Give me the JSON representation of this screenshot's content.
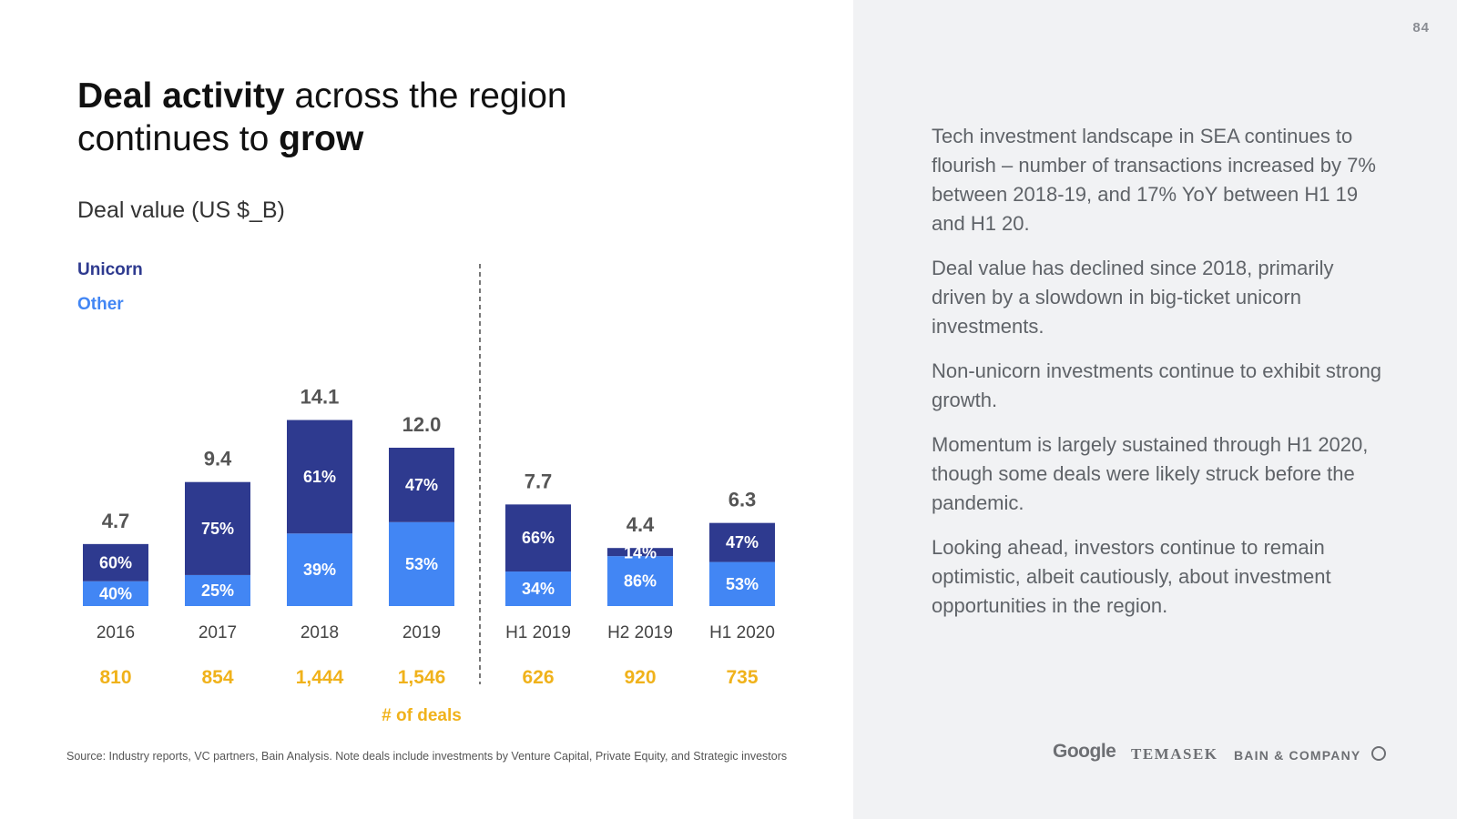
{
  "page_number": "84",
  "title": {
    "part1_bold": "Deal activity",
    "part1_rest": " across the region",
    "part2_rest": "continues to ",
    "part2_bold": "grow"
  },
  "subtitle": "Deal value (US $_B)",
  "colors": {
    "unicorn": "#2e3a8f",
    "other": "#4286f4",
    "deals": "#f0b21b",
    "total": "#555555"
  },
  "chart_data": {
    "type": "bar",
    "stacked": true,
    "title": "Deal value (US $_B)",
    "categories": [
      "2016",
      "2017",
      "2018",
      "2019",
      "H1 2019",
      "H2 2019",
      "H1 2020"
    ],
    "totals": [
      4.7,
      9.4,
      14.1,
      12.0,
      7.7,
      4.4,
      6.3
    ],
    "total_labels": [
      "4.7",
      "9.4",
      "14.1",
      "12.0",
      "7.7",
      "4.4",
      "6.3"
    ],
    "series": [
      {
        "name": "Other",
        "percent": [
          40,
          25,
          39,
          53,
          34,
          86,
          53
        ],
        "labels": [
          "40%",
          "25%",
          "39%",
          "53%",
          "34%",
          "86%",
          "53%"
        ]
      },
      {
        "name": "Unicorn",
        "percent": [
          60,
          75,
          61,
          47,
          66,
          14,
          47
        ],
        "labels": [
          "60%",
          "75%",
          "61%",
          "47%",
          "66%",
          "14%",
          "47%"
        ]
      }
    ],
    "deals": [
      "810",
      "854",
      "1,444",
      "1,546",
      "626",
      "920",
      "735"
    ],
    "deals_label": "# of deals",
    "legend": [
      "Unicorn",
      "Other"
    ],
    "divider_after_index": 3
  },
  "paragraphs": [
    "Tech investment landscape in SEA continues to flourish – number of transactions increased by 7% between 2018-19, and 17% YoY between H1 19 and H1 20.",
    "Deal value has declined since 2018, primarily driven by a slowdown in big-ticket unicorn investments.",
    "Non-unicorn investments continue to exhibit strong growth.",
    "Momentum is largely sustained through H1 2020, though some deals were likely struck before the pandemic.",
    "Looking ahead, investors continue to remain optimistic, albeit cautiously, about investment opportunities in the region."
  ],
  "source": "Source: Industry reports, VC partners, Bain Analysis. Note deals include investments by Venture Capital, Private Equity, and Strategic investors",
  "logos": {
    "google": "Google",
    "temasek": "TEMASEK",
    "bain": "BAIN & COMPANY"
  }
}
